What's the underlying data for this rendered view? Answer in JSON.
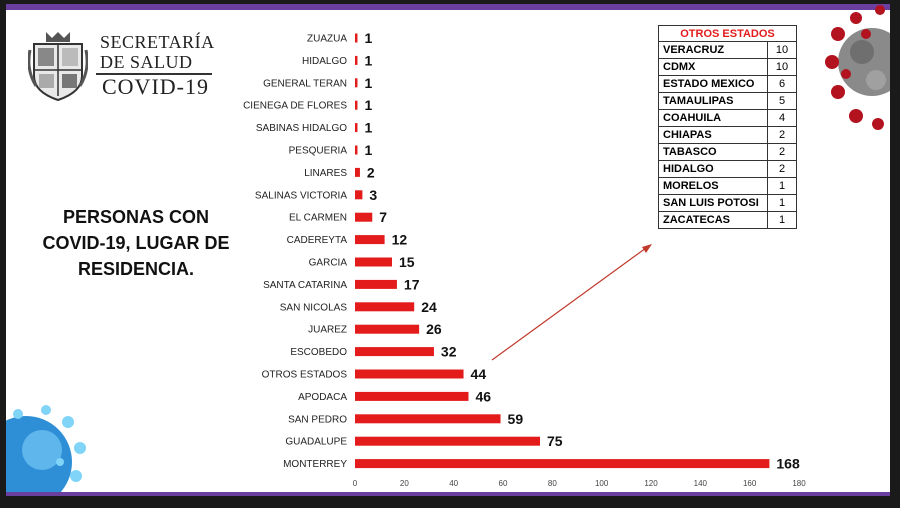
{
  "header": {
    "logo_line1": "SECRETARÍA",
    "logo_line2": "DE SALUD",
    "logo_line3": "COVID-19"
  },
  "headline": {
    "line1": "PERSONAS CON",
    "line2": "COVID-19, LUGAR DE",
    "line3": "RESIDENCIA."
  },
  "colors": {
    "bar": "#e31b1b",
    "accent_purple": "#6b3fa0",
    "table_title": "#e31b1b"
  },
  "chart_data": {
    "type": "bar",
    "orientation": "horizontal",
    "categories": [
      "ZUAZUA",
      "HIDALGO",
      "GENERAL TERAN",
      "CIENEGA DE FLORES",
      "SABINAS HIDALGO",
      "PESQUERIA",
      "LINARES",
      "SALINAS VICTORIA",
      "EL CARMEN",
      "CADEREYTA",
      "GARCIA",
      "SANTA CATARINA",
      "SAN NICOLAS",
      "JUAREZ",
      "ESCOBEDO",
      "OTROS ESTADOS",
      "APODACA",
      "SAN PEDRO",
      "GUADALUPE",
      "MONTERREY"
    ],
    "values": [
      1,
      1,
      1,
      1,
      1,
      1,
      2,
      3,
      7,
      12,
      15,
      17,
      24,
      26,
      32,
      44,
      46,
      59,
      75,
      168
    ],
    "xlim": [
      0,
      180
    ],
    "xticks": [
      0,
      20,
      40,
      60,
      80,
      100,
      120,
      140,
      160,
      180
    ],
    "data_labels": true,
    "grid": false
  },
  "others_table": {
    "title": "OTROS ESTADOS",
    "rows": [
      {
        "state": "VERACRUZ",
        "count": "10"
      },
      {
        "state": "CDMX",
        "count": "10"
      },
      {
        "state": "ESTADO MEXICO",
        "count": "6"
      },
      {
        "state": "TAMAULIPAS",
        "count": "5"
      },
      {
        "state": "COAHUILA",
        "count": "4"
      },
      {
        "state": "CHIAPAS",
        "count": "2"
      },
      {
        "state": "TABASCO",
        "count": "2"
      },
      {
        "state": "HIDALGO",
        "count": "2"
      },
      {
        "state": "MORELOS",
        "count": "1"
      },
      {
        "state": "SAN LUIS POTOSI",
        "count": "1"
      },
      {
        "state": "ZACATECAS",
        "count": "1"
      }
    ]
  }
}
